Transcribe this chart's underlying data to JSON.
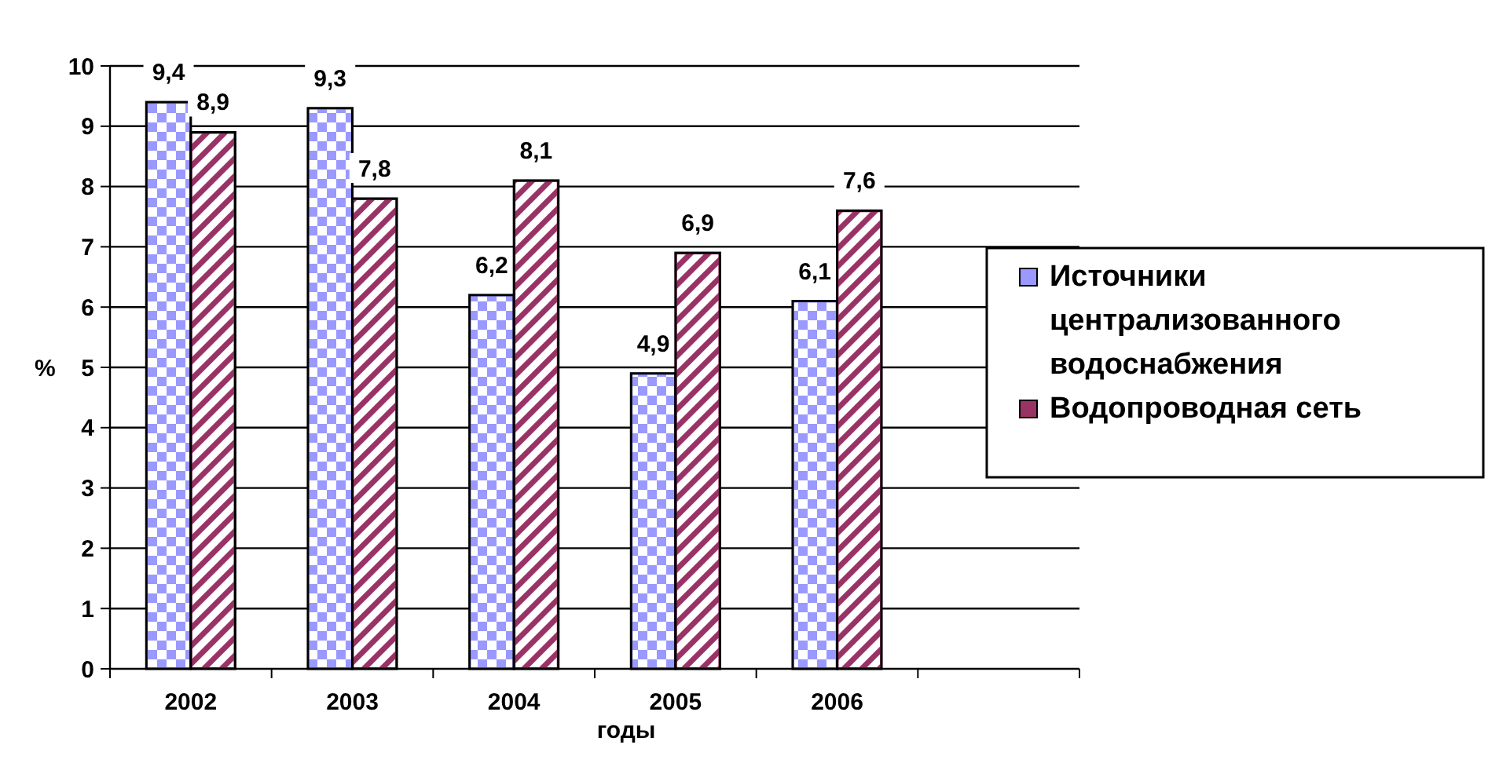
{
  "chart_data": {
    "type": "bar",
    "xlabel": "годы",
    "ylabel": "%",
    "categories": [
      "2002",
      "2003",
      "2004",
      "2005",
      "2006",
      null
    ],
    "series": [
      {
        "name": "Источники централизованного водоснабжения",
        "color": "#9999ff",
        "values": [
          9.4,
          9.3,
          6.2,
          4.9,
          6.1,
          null
        ],
        "value_labels": [
          "9,4",
          "9,3",
          "6,2",
          "4,9",
          "6,1",
          null
        ]
      },
      {
        "name": "Водопроводная сеть",
        "color": "#993366",
        "values": [
          8.9,
          7.8,
          8.1,
          6.9,
          7.6,
          null
        ],
        "value_labels": [
          "8,9",
          "7,8",
          "8,1",
          "6,9",
          "7,6",
          null
        ]
      }
    ],
    "ylim": [
      0,
      10
    ],
    "yticks": [
      0,
      1,
      2,
      3,
      4,
      5,
      6,
      7,
      8,
      9,
      10
    ],
    "grid": "y",
    "legend": "right"
  }
}
